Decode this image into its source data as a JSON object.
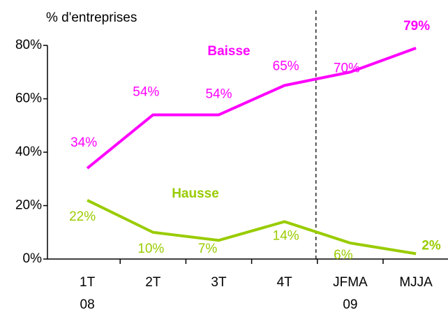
{
  "chart_data": {
    "type": "line",
    "y_axis_label": "% d'entreprises",
    "categories": [
      "1T",
      "2T",
      "3T",
      "4T",
      "JFMA",
      "MJJA"
    ],
    "year_labels": [
      "08",
      null,
      null,
      null,
      "09",
      null
    ],
    "series": [
      {
        "name": "Baisse",
        "color": "#ff00ff",
        "values": [
          34,
          54,
          54,
          65,
          70,
          79
        ],
        "value_labels": [
          "34%",
          "54%",
          "54%",
          "65%",
          "70%",
          "79%"
        ]
      },
      {
        "name": "Hausse",
        "color": "#99cc00",
        "values": [
          22,
          10,
          7,
          14,
          6,
          2
        ],
        "value_labels": [
          "22%",
          "10%",
          "7%",
          "14%",
          "6%",
          "2%"
        ]
      }
    ],
    "ylim": [
      0,
      80
    ],
    "yticks": [
      {
        "value": 0,
        "label": "0%"
      },
      {
        "value": 20,
        "label": "20%"
      },
      {
        "value": 40,
        "label": "40%"
      },
      {
        "value": 60,
        "label": "60%"
      },
      {
        "value": 80,
        "label": "80%"
      }
    ],
    "last_label_bold": true,
    "grid": false
  }
}
